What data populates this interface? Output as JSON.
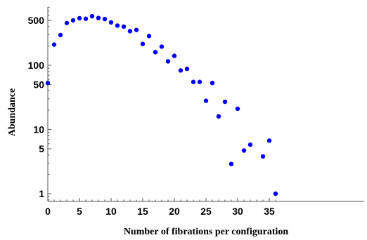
{
  "chart_data": {
    "type": "scatter",
    "xlabel": "Number of fibrations per configuration",
    "ylabel": "Abundance",
    "x_scale": "linear",
    "y_scale": "log",
    "xlim": [
      0,
      36.5
    ],
    "ylim": [
      0.6,
      900
    ],
    "x_ticks": [
      0,
      5,
      10,
      15,
      20,
      25,
      30,
      35
    ],
    "y_ticks": [
      1,
      5,
      10,
      50,
      100,
      500
    ],
    "marker_color": "#0000ff",
    "grid": false,
    "points": [
      {
        "x": 0,
        "y": 53
      },
      {
        "x": 1,
        "y": 210
      },
      {
        "x": 2,
        "y": 295
      },
      {
        "x": 3,
        "y": 455
      },
      {
        "x": 4,
        "y": 500
      },
      {
        "x": 5,
        "y": 540
      },
      {
        "x": 6,
        "y": 530
      },
      {
        "x": 7,
        "y": 580
      },
      {
        "x": 8,
        "y": 545
      },
      {
        "x": 9,
        "y": 525
      },
      {
        "x": 10,
        "y": 465
      },
      {
        "x": 11,
        "y": 415
      },
      {
        "x": 12,
        "y": 400
      },
      {
        "x": 13,
        "y": 340
      },
      {
        "x": 14,
        "y": 355
      },
      {
        "x": 15,
        "y": 215
      },
      {
        "x": 16,
        "y": 285
      },
      {
        "x": 17,
        "y": 160
      },
      {
        "x": 18,
        "y": 195
      },
      {
        "x": 19,
        "y": 115
      },
      {
        "x": 20,
        "y": 140
      },
      {
        "x": 21,
        "y": 83
      },
      {
        "x": 22,
        "y": 88
      },
      {
        "x": 23,
        "y": 55
      },
      {
        "x": 24,
        "y": 55
      },
      {
        "x": 25,
        "y": 28
      },
      {
        "x": 26,
        "y": 53
      },
      {
        "x": 27,
        "y": 16
      },
      {
        "x": 28,
        "y": 27
      },
      {
        "x": 29,
        "y": 2.9
      },
      {
        "x": 30,
        "y": 21
      },
      {
        "x": 31,
        "y": 4.7
      },
      {
        "x": 32,
        "y": 5.8
      },
      {
        "x": 34,
        "y": 3.8
      },
      {
        "x": 35,
        "y": 6.7
      },
      {
        "x": 36,
        "y": 1
      }
    ]
  }
}
